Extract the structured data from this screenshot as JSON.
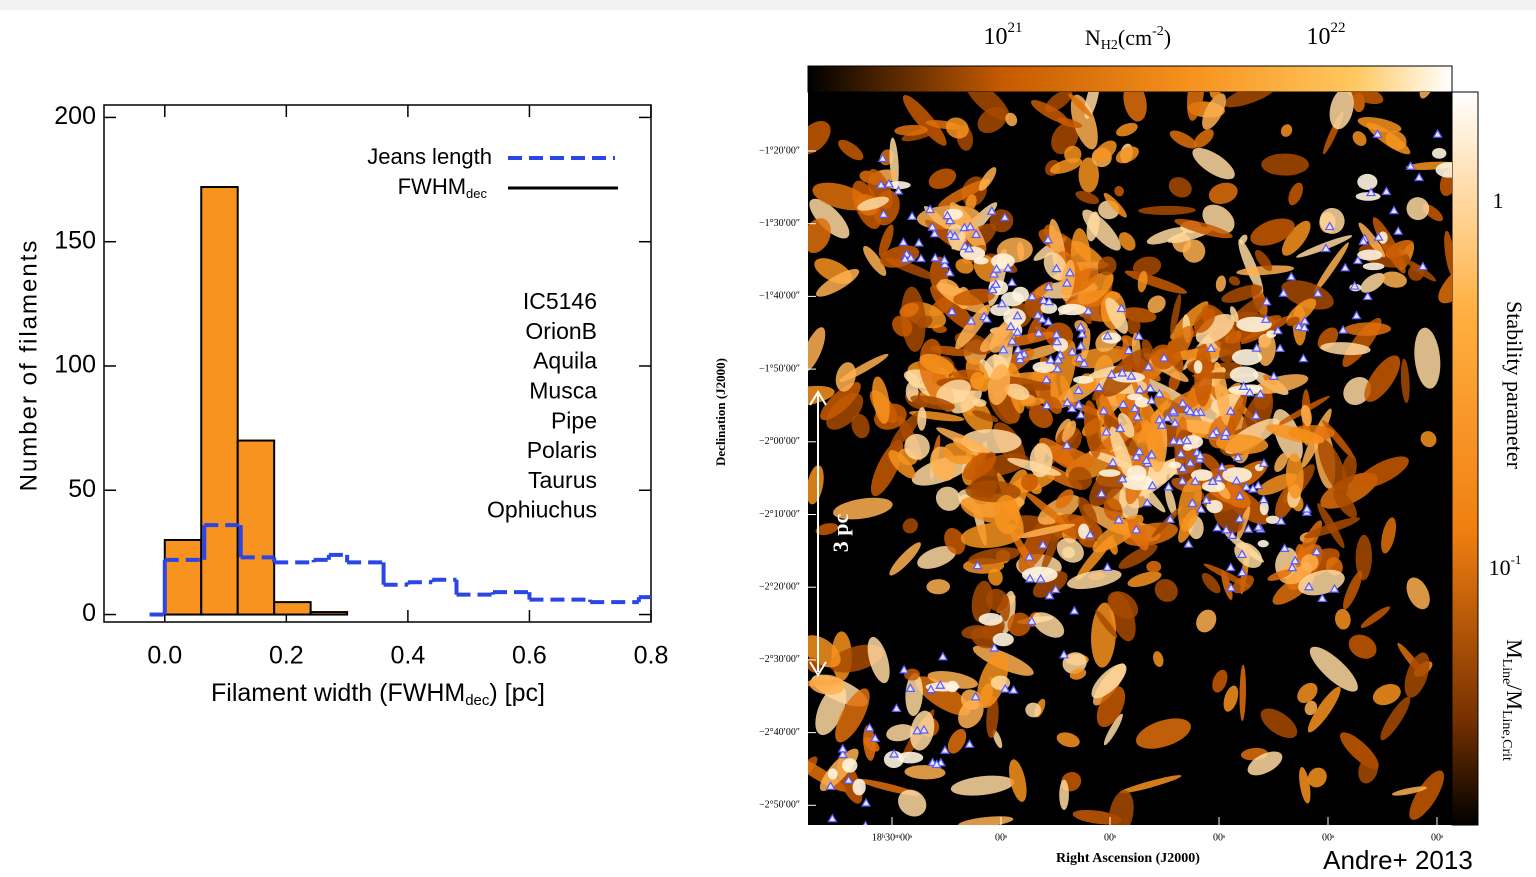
{
  "chart_data": {
    "type": "histogram",
    "x_label": {
      "text": "Filament width (FWHM",
      "sub": "dec",
      "tail": ") [pc]"
    },
    "y_label": "Number of filaments",
    "name": "FWHM",
    "name_sub": "dec",
    "bins": [
      0,
      0.06,
      0.12,
      0.18,
      0.24,
      0.3
    ],
    "counts": [
      30,
      172,
      70,
      5,
      1
    ],
    "color": "#f7931e",
    "edge_color": "#000000",
    "series": [
      {
        "name": "Jeans length",
        "color": "#2b45e6",
        "line_style": "dashed",
        "bins": [
          -0.025,
          0,
          0.065,
          0.125,
          0.18,
          0.245,
          0.27,
          0.3,
          0.36,
          0.4,
          0.44,
          0.48,
          0.54,
          0.6,
          0.7,
          0.78,
          0.8
        ],
        "values": [
          0,
          22,
          36,
          23,
          21,
          22,
          24,
          21,
          12,
          13,
          14,
          8,
          9,
          6,
          5,
          7
        ]
      }
    ],
    "xlim": [
      -0.1,
      0.8
    ],
    "ylim": [
      -3,
      205
    ],
    "xticks": [
      {
        "value": 0,
        "label": "0.0"
      },
      0.2,
      0.4,
      0.6,
      0.8
    ],
    "yticks": [
      0,
      50,
      100,
      150,
      200
    ],
    "annotations": [
      "IC5146",
      "OrionB",
      "Aquila",
      "Musca",
      "Pipe",
      "Polaris",
      "Taurus",
      "Ophiuchus"
    ]
  },
  "map": {
    "colorbar_top": {
      "ticks": [
        {
          "base": "10",
          "exp": "21"
        },
        {
          "base": "10",
          "exp": "22"
        }
      ],
      "label": {
        "text": "N",
        "sub": "H2",
        "tail": "(cm",
        "sup": "-2",
        "end": ")"
      }
    },
    "dec_ticks": [
      "−1°20′00″",
      "−1°30′00″",
      "−1°40′00″",
      "−1°50′00″",
      "−2°00′00″",
      "−2°10′00″",
      "−2°20′00″",
      "−2°30′00″",
      "−2°40′00″",
      "−2°50′00″"
    ],
    "dec_label": "Declination (J2000)",
    "ra_ticks": [
      "18ʰ30ᵐ00ˢ",
      "00ˢ",
      "00ˢ",
      "00ˢ",
      "00ˢ",
      "00ˢ"
    ],
    "ra_label": "Right Ascension (J2000)",
    "scale_bar": "3 pc",
    "colorbar_right": {
      "tick_one": "1",
      "tick_low": {
        "base": "10",
        "exp": "-1"
      },
      "label": "Stability parameter",
      "ratio": {
        "num": "M",
        "num_sub": "Line",
        "sep": "/M",
        "den_sub": "Line,Crit"
      }
    },
    "credit": "Andre+ 2013"
  }
}
